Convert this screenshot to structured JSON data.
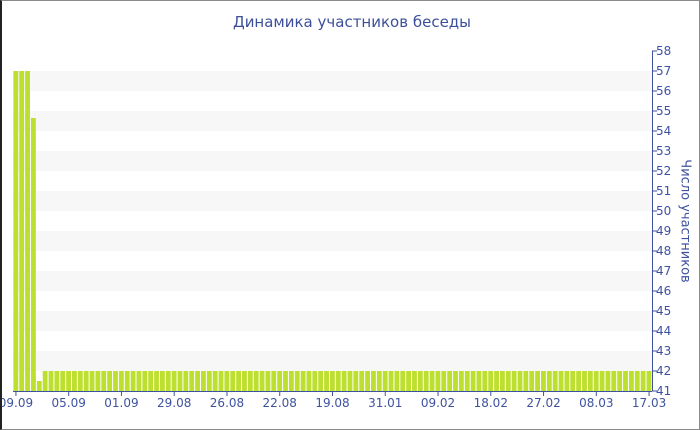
{
  "chart_data": {
    "type": "bar",
    "title": "Динамика участников беседы",
    "ylabel": "Число участников",
    "xlabel": "",
    "ylim": [
      41,
      58
    ],
    "yticks": [
      41,
      42,
      43,
      44,
      45,
      46,
      47,
      48,
      49,
      50,
      51,
      52,
      53,
      54,
      55,
      56,
      57,
      58
    ],
    "y_axis_side": "right",
    "grid": "alternating horizontal bands",
    "x_tick_labels": [
      "09.09",
      "05.09",
      "01.09",
      "29.08",
      "26.08",
      "22.08",
      "19.08",
      "31.01",
      "09.02",
      "18.02",
      "27.02",
      "08.03",
      "17.03"
    ],
    "x_tick_every": 9,
    "bar_color": "#bde030",
    "values": [
      57,
      57,
      57,
      54.65,
      41.5,
      42,
      42,
      42,
      42,
      42,
      42,
      42,
      42,
      42,
      42,
      42,
      42,
      42,
      42,
      42,
      42,
      42,
      42,
      42,
      42,
      42,
      42,
      42,
      42,
      42,
      42,
      42,
      42,
      42,
      42,
      42,
      42,
      42,
      42,
      42,
      42,
      42,
      42,
      42,
      42,
      42,
      42,
      42,
      42,
      42,
      42,
      42,
      42,
      42,
      42,
      42,
      42,
      42,
      42,
      42,
      42,
      42,
      42,
      42,
      42,
      42,
      42,
      42,
      42,
      42,
      42,
      42,
      42,
      42,
      42,
      42,
      42,
      42,
      42,
      42,
      42,
      42,
      42,
      42,
      42,
      42,
      42,
      42,
      42,
      42,
      42,
      42,
      42,
      42,
      42,
      42,
      42,
      42,
      42,
      42,
      42,
      42,
      42,
      42,
      42,
      42,
      42,
      42,
      42
    ]
  }
}
